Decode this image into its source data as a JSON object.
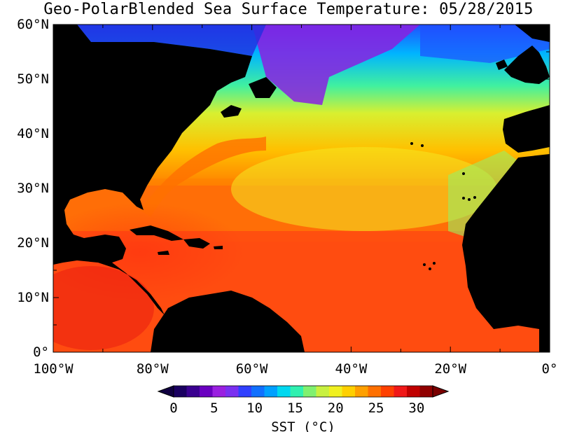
{
  "title": "Geo-PolarBlended Sea Surface Temperature: 05/28/2015",
  "map": {
    "projection": "equirectangular",
    "lon_range": [
      -100,
      0
    ],
    "lat_range": [
      0,
      60
    ],
    "variable": "SST",
    "units": "°C",
    "land_color": "#000000"
  },
  "axes": {
    "x_ticks": [
      {
        "lon": -100,
        "label": "100°W"
      },
      {
        "lon": -80,
        "label": "80°W"
      },
      {
        "lon": -60,
        "label": "60°W"
      },
      {
        "lon": -40,
        "label": "40°W"
      },
      {
        "lon": -20,
        "label": "20°W"
      },
      {
        "lon": 0,
        "label": "0°"
      }
    ],
    "y_ticks": [
      {
        "lat": 0,
        "label": "0°"
      },
      {
        "lat": 10,
        "label": "10°N"
      },
      {
        "lat": 20,
        "label": "20°N"
      },
      {
        "lat": 30,
        "label": "30°N"
      },
      {
        "lat": 40,
        "label": "40°N"
      },
      {
        "lat": 50,
        "label": "50°N"
      },
      {
        "lat": 60,
        "label": "60°N"
      }
    ]
  },
  "colorbar": {
    "min": 0,
    "max": 32,
    "tick_values": [
      0,
      5,
      10,
      15,
      20,
      25,
      30
    ],
    "tick_labels": [
      "0",
      "5",
      "10",
      "15",
      "20",
      "25",
      "30"
    ],
    "title_prefix": "SST (",
    "title_unit": "°C",
    "title_suffix": ")",
    "colors": [
      "#1a0060",
      "#3a0090",
      "#6a00c0",
      "#9a20e0",
      "#7a30f0",
      "#3040ff",
      "#1070ff",
      "#00a0ff",
      "#00d8f0",
      "#30f0b0",
      "#80f070",
      "#c8f040",
      "#f0f020",
      "#ffd000",
      "#ffa000",
      "#ff7000",
      "#ff4000",
      "#f01818",
      "#c00000",
      "#900000"
    ]
  }
}
